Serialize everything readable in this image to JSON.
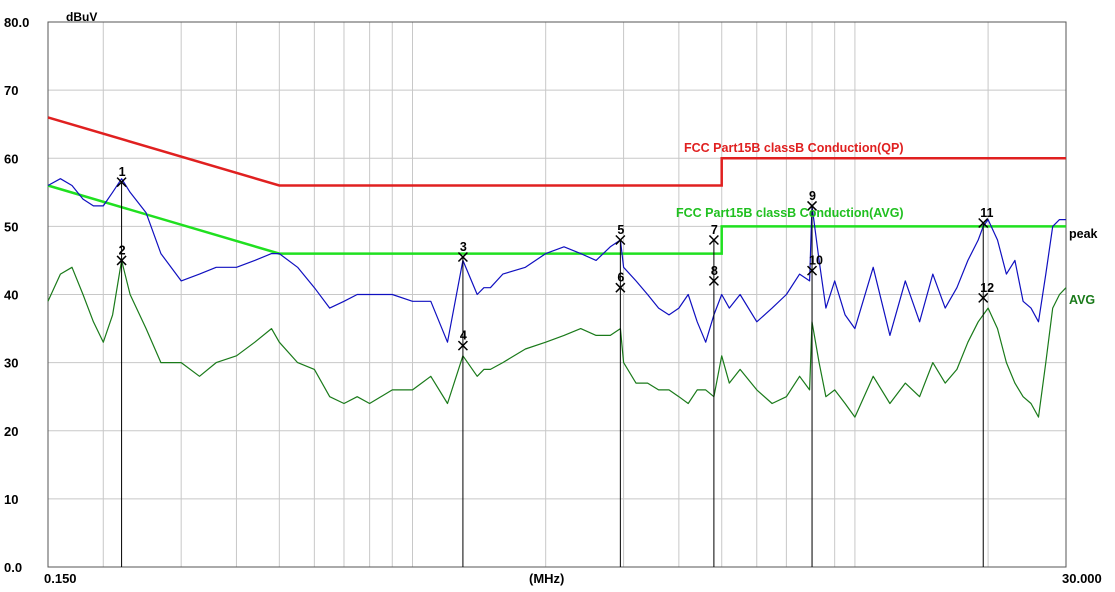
{
  "chart_data": {
    "type": "line",
    "title": "",
    "ylabel": "dBuV",
    "xlabel": "(MHz)",
    "x_scale": "log",
    "xlim": [
      0.15,
      30
    ],
    "ylim": [
      0,
      80
    ],
    "x_tick_labels": {
      "left": "0.150",
      "right": "30.000"
    },
    "y_ticks": [
      {
        "value": 0,
        "label": "0.0"
      },
      {
        "value": 10,
        "label": "10"
      },
      {
        "value": 20,
        "label": "20"
      },
      {
        "value": 30,
        "label": "30"
      },
      {
        "value": 40,
        "label": "40"
      },
      {
        "value": 50,
        "label": "50"
      },
      {
        "value": 60,
        "label": "60"
      },
      {
        "value": 70,
        "label": "70"
      },
      {
        "value": 80,
        "label": "80.0"
      }
    ],
    "grid": true,
    "colors": {
      "qp_limit": "#e02020",
      "avg_limit": "#20e020",
      "peak_trace": "#1010c0",
      "avg_trace": "#1a7a1a",
      "marker": "#000000",
      "grid": "#c8c8c8"
    },
    "limits": [
      {
        "name": "FCC  Part15B classB Conduction(QP)",
        "points": [
          [
            0.15,
            66
          ],
          [
            0.5,
            56
          ],
          [
            5,
            56
          ],
          [
            5,
            60
          ],
          [
            30,
            60
          ]
        ]
      },
      {
        "name": "FCC  Part15B classB Conduction(AVG)",
        "points": [
          [
            0.15,
            56
          ],
          [
            0.5,
            46
          ],
          [
            5,
            46
          ],
          [
            5,
            50
          ],
          [
            30,
            50
          ]
        ]
      }
    ],
    "series": [
      {
        "name": "peak",
        "x": [
          0.15,
          0.16,
          0.17,
          0.18,
          0.19,
          0.2,
          0.21,
          0.22,
          0.23,
          0.25,
          0.27,
          0.3,
          0.33,
          0.36,
          0.4,
          0.44,
          0.48,
          0.5,
          0.55,
          0.6,
          0.65,
          0.7,
          0.75,
          0.8,
          0.9,
          1.0,
          1.1,
          1.2,
          1.3,
          1.4,
          1.45,
          1.5,
          1.6,
          1.8,
          2.0,
          2.2,
          2.4,
          2.6,
          2.8,
          2.95,
          3.0,
          3.2,
          3.4,
          3.6,
          3.8,
          4.0,
          4.2,
          4.4,
          4.6,
          4.8,
          5.0,
          5.2,
          5.5,
          6.0,
          6.5,
          7.0,
          7.5,
          7.9,
          8.0,
          8.3,
          8.6,
          9.0,
          9.5,
          10,
          11,
          12,
          13,
          14,
          15,
          16,
          17,
          18,
          19,
          19.5,
          20,
          21,
          22,
          23,
          24,
          25,
          26,
          27,
          28,
          29,
          30
        ],
        "y": [
          56,
          57,
          56,
          54,
          53,
          53,
          55,
          57,
          55,
          52,
          46,
          42,
          43,
          44,
          44,
          45,
          46,
          46,
          44,
          41,
          38,
          39,
          40,
          40,
          40,
          39,
          39,
          33,
          45,
          40,
          41,
          41,
          43,
          44,
          46,
          47,
          46,
          45,
          47,
          48,
          44,
          42,
          40,
          38,
          37,
          38,
          40,
          36,
          33,
          37,
          40,
          38,
          40,
          36,
          38,
          40,
          43,
          42,
          53,
          45,
          38,
          42,
          37,
          35,
          44,
          34,
          42,
          36,
          43,
          38,
          41,
          45,
          48,
          50,
          51,
          48,
          43,
          45,
          39,
          38,
          36,
          43,
          50,
          51,
          51
        ]
      },
      {
        "name": "AVG",
        "x": [
          0.15,
          0.16,
          0.17,
          0.18,
          0.19,
          0.2,
          0.21,
          0.22,
          0.23,
          0.25,
          0.27,
          0.3,
          0.33,
          0.36,
          0.4,
          0.44,
          0.48,
          0.5,
          0.55,
          0.6,
          0.65,
          0.7,
          0.75,
          0.8,
          0.9,
          1.0,
          1.1,
          1.2,
          1.3,
          1.4,
          1.45,
          1.5,
          1.6,
          1.8,
          2.0,
          2.2,
          2.4,
          2.6,
          2.8,
          2.95,
          3.0,
          3.2,
          3.4,
          3.6,
          3.8,
          4.0,
          4.2,
          4.4,
          4.6,
          4.8,
          5.0,
          5.2,
          5.5,
          6.0,
          6.5,
          7.0,
          7.5,
          7.9,
          8.0,
          8.3,
          8.6,
          9.0,
          9.5,
          10,
          11,
          12,
          13,
          14,
          15,
          16,
          17,
          18,
          19,
          19.5,
          20,
          21,
          22,
          23,
          24,
          25,
          26,
          27,
          28,
          29,
          30
        ],
        "y": [
          39,
          43,
          44,
          40,
          36,
          33,
          37,
          45,
          40,
          35,
          30,
          30,
          28,
          30,
          31,
          33,
          35,
          33,
          30,
          29,
          25,
          24,
          25,
          24,
          26,
          26,
          28,
          24,
          31,
          28,
          29,
          29,
          30,
          32,
          33,
          34,
          35,
          34,
          34,
          35,
          30,
          27,
          27,
          26,
          26,
          25,
          24,
          26,
          26,
          25,
          31,
          27,
          29,
          26,
          24,
          25,
          28,
          26,
          36,
          30,
          25,
          26,
          24,
          22,
          28,
          24,
          27,
          25,
          30,
          27,
          29,
          33,
          36,
          37,
          38,
          35,
          30,
          27,
          25,
          24,
          22,
          30,
          38,
          40,
          41
        ]
      }
    ],
    "markers": [
      {
        "label": "1",
        "x": 0.22,
        "y": 56.5
      },
      {
        "label": "2",
        "x": 0.22,
        "y": 45
      },
      {
        "label": "3",
        "x": 1.3,
        "y": 45.5
      },
      {
        "label": "4",
        "x": 1.3,
        "y": 32.5
      },
      {
        "label": "5",
        "x": 2.95,
        "y": 48
      },
      {
        "label": "6",
        "x": 2.95,
        "y": 41
      },
      {
        "label": "7",
        "x": 4.8,
        "y": 48
      },
      {
        "label": "8",
        "x": 4.8,
        "y": 42
      },
      {
        "label": "9",
        "x": 8.0,
        "y": 53
      },
      {
        "label": "10",
        "x": 8.0,
        "y": 43.5
      },
      {
        "label": "11",
        "x": 19.5,
        "y": 50.5
      },
      {
        "label": "12",
        "x": 19.5,
        "y": 39.5
      }
    ]
  }
}
